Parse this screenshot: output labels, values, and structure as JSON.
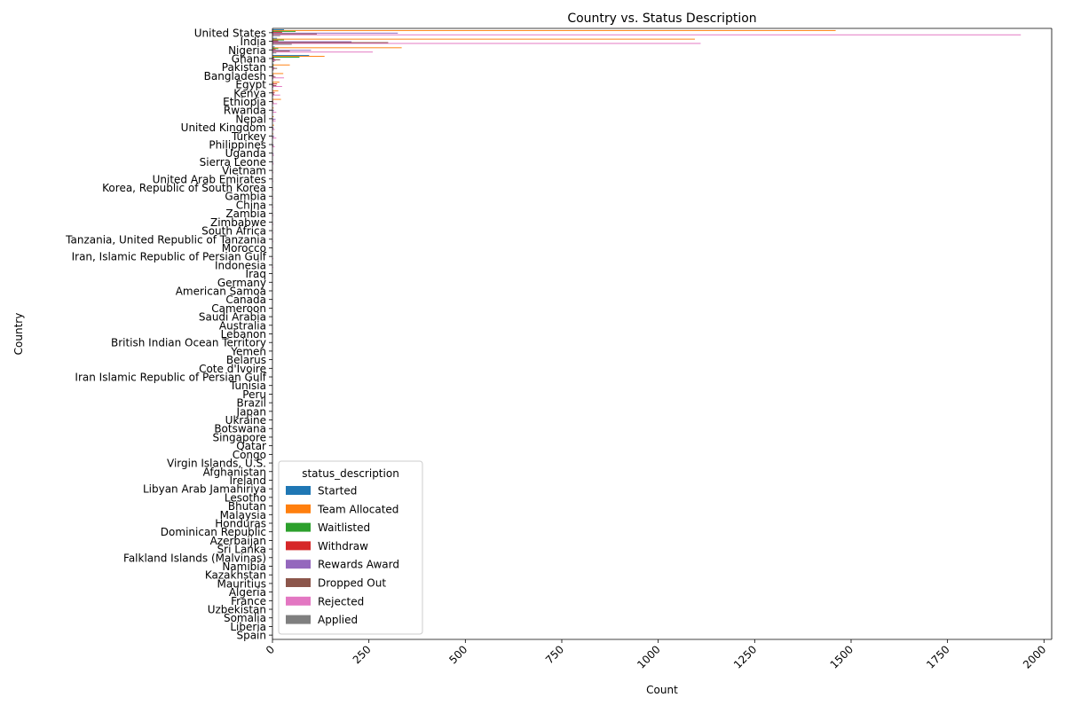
{
  "chart_data": {
    "type": "bar",
    "orientation": "horizontal",
    "title": "Country vs. Status Description",
    "xlabel": "Count",
    "ylabel": "Country",
    "xlim": [
      0,
      2020
    ],
    "xticks": [
      0,
      250,
      500,
      750,
      1000,
      1250,
      1500,
      1750,
      2000
    ],
    "grid": false,
    "legend": {
      "title": "status_description",
      "position": "lower-center"
    },
    "categories": [
      "United States",
      "India",
      "Nigeria",
      "Ghana",
      "Pakistan",
      "Bangladesh",
      "Egypt",
      "Kenya",
      "Ethiopia",
      "Rwanda",
      "Nepal",
      "United Kingdom",
      "Turkey",
      "Philippines",
      "Uganda",
      "Sierra Leone",
      "Vietnam",
      "United Arab Emirates",
      "Korea, Republic of South Korea",
      "Gambia",
      "China",
      "Zambia",
      "Zimbabwe",
      "South Africa",
      "Tanzania, United Republic of Tanzania",
      "Morocco",
      "Iran, Islamic Republic of Persian Gulf",
      "Indonesia",
      "Iraq",
      "Germany",
      "American Samoa",
      "Canada",
      "Cameroon",
      "Saudi Arabia",
      "Australia",
      "Lebanon",
      "British Indian Ocean Territory",
      "Yemen",
      "Belarus",
      "Cote d'Ivoire",
      "Iran  Islamic Republic of Persian Gulf",
      "Tunisia",
      "Peru",
      "Brazil",
      "Japan",
      "Ukraine",
      "Botswana",
      "Singapore",
      "Qatar",
      "Congo",
      "Virgin Islands, U.S.",
      "Afghanistan",
      "Ireland",
      "Libyan Arab Jamahiriya",
      "Lesotho",
      "Bhutan",
      "Malaysia",
      "Honduras",
      "Dominican Republic",
      "Azerbaijan",
      "Sri Lanka",
      "Falkland Islands (Malvinas)",
      "Namibia",
      "Kazakhstan",
      "Mauritius",
      "Algeria",
      "France",
      "Uzbekistan",
      "Somalia",
      "Liberia",
      "Spain"
    ],
    "series": [
      {
        "name": "Started",
        "color": "#1f77b4",
        "values": [
          30,
          12,
          6,
          95,
          3,
          1,
          1,
          1,
          1,
          0,
          0,
          0,
          0,
          0,
          0,
          0,
          0,
          0,
          0,
          0,
          0,
          0,
          0,
          0,
          0,
          0,
          0,
          0,
          0,
          0,
          0,
          0,
          0,
          0,
          0,
          0,
          0,
          0,
          0,
          0,
          0,
          0,
          0,
          0,
          0,
          0,
          0,
          0,
          0,
          0,
          0,
          0,
          0,
          0,
          0,
          0,
          0,
          0,
          0,
          0,
          0,
          0,
          0,
          0,
          0,
          0,
          0,
          0,
          0,
          0,
          0
        ]
      },
      {
        "name": "Team Allocated",
        "color": "#ff7f0e",
        "values": [
          1460,
          1095,
          335,
          135,
          45,
          28,
          18,
          15,
          22,
          3,
          3,
          4,
          2,
          1,
          1,
          1,
          1,
          1,
          0,
          1,
          1,
          0,
          0,
          1,
          1,
          0,
          0,
          1,
          0,
          0,
          0,
          0,
          0,
          0,
          0,
          0,
          0,
          0,
          0,
          0,
          0,
          0,
          0,
          0,
          0,
          0,
          0,
          0,
          0,
          0,
          0,
          0,
          0,
          0,
          0,
          0,
          0,
          0,
          0,
          0,
          0,
          0,
          0,
          0,
          0,
          0,
          0,
          0,
          0,
          0,
          0
        ]
      },
      {
        "name": "Waitlisted",
        "color": "#2ca02c",
        "values": [
          60,
          30,
          15,
          70,
          3,
          2,
          2,
          1,
          1,
          0,
          0,
          0,
          0,
          0,
          0,
          0,
          0,
          0,
          0,
          0,
          0,
          0,
          0,
          0,
          0,
          0,
          0,
          0,
          0,
          0,
          0,
          0,
          0,
          0,
          0,
          0,
          0,
          0,
          0,
          0,
          0,
          0,
          0,
          0,
          0,
          0,
          0,
          0,
          0,
          0,
          0,
          0,
          0,
          0,
          0,
          0,
          0,
          0,
          0,
          0,
          0,
          0,
          0,
          0,
          0,
          0,
          0,
          0,
          0,
          0,
          0
        ]
      },
      {
        "name": "Withdraw",
        "color": "#d62728",
        "values": [
          25,
          15,
          8,
          4,
          2,
          3,
          12,
          6,
          2,
          1,
          1,
          1,
          0,
          1,
          0,
          0,
          0,
          0,
          0,
          0,
          0,
          0,
          0,
          0,
          0,
          0,
          0,
          0,
          0,
          0,
          0,
          0,
          0,
          0,
          0,
          0,
          0,
          0,
          0,
          0,
          0,
          0,
          0,
          0,
          0,
          0,
          0,
          0,
          0,
          0,
          0,
          0,
          0,
          0,
          0,
          0,
          0,
          0,
          0,
          0,
          0,
          0,
          0,
          0,
          0,
          0,
          0,
          0,
          0,
          0,
          0
        ]
      },
      {
        "name": "Rewards Award",
        "color": "#9467bd",
        "values": [
          325,
          205,
          100,
          6,
          5,
          4,
          3,
          3,
          2,
          4,
          8,
          3,
          5,
          3,
          3,
          2,
          1,
          1,
          1,
          1,
          1,
          1,
          1,
          1,
          1,
          1,
          1,
          1,
          0,
          1,
          0,
          1,
          0,
          0,
          0,
          0,
          0,
          0,
          0,
          0,
          0,
          0,
          0,
          0,
          0,
          0,
          0,
          0,
          0,
          0,
          0,
          0,
          0,
          0,
          0,
          0,
          0,
          0,
          0,
          0,
          0,
          0,
          0,
          0,
          0,
          0,
          0,
          0,
          0,
          0,
          0
        ]
      },
      {
        "name": "Dropped Out",
        "color": "#8c564b",
        "values": [
          115,
          300,
          45,
          20,
          12,
          8,
          10,
          5,
          3,
          1,
          2,
          2,
          2,
          2,
          1,
          1,
          1,
          0,
          1,
          1,
          0,
          1,
          1,
          0,
          0,
          1,
          0,
          0,
          0,
          0,
          0,
          0,
          0,
          0,
          0,
          0,
          0,
          0,
          0,
          0,
          0,
          0,
          0,
          0,
          0,
          0,
          0,
          0,
          0,
          0,
          0,
          0,
          0,
          0,
          0,
          0,
          0,
          0,
          0,
          0,
          0,
          0,
          0,
          0,
          0,
          0,
          0,
          0,
          0,
          0,
          0
        ]
      },
      {
        "name": "Rejected",
        "color": "#e377c2",
        "values": [
          1940,
          1110,
          260,
          8,
          4,
          30,
          25,
          20,
          12,
          10,
          8,
          6,
          10,
          6,
          4,
          3,
          2,
          2,
          2,
          2,
          2,
          2,
          2,
          2,
          2,
          1,
          2,
          2,
          1,
          1,
          1,
          1,
          1,
          1,
          1,
          1,
          1,
          1,
          1,
          1,
          1,
          1,
          1,
          1,
          1,
          1,
          1,
          1,
          1,
          1,
          1,
          1,
          1,
          1,
          1,
          1,
          1,
          1,
          1,
          1,
          1,
          1,
          1,
          1,
          1,
          1,
          1,
          1,
          1,
          1,
          1
        ]
      },
      {
        "name": "Applied",
        "color": "#7f7f7f",
        "values": [
          20,
          50,
          10,
          5,
          3,
          2,
          2,
          2,
          1,
          1,
          1,
          1,
          1,
          1,
          1,
          1,
          1,
          1,
          1,
          1,
          1,
          1,
          1,
          1,
          1,
          1,
          1,
          1,
          1,
          1,
          1,
          1,
          1,
          1,
          1,
          1,
          1,
          1,
          1,
          1,
          1,
          1,
          1,
          1,
          1,
          1,
          1,
          1,
          1,
          1,
          1,
          1,
          1,
          1,
          1,
          1,
          1,
          1,
          1,
          1,
          1,
          1,
          1,
          1,
          1,
          1,
          1,
          1,
          1,
          1,
          1
        ]
      }
    ]
  }
}
